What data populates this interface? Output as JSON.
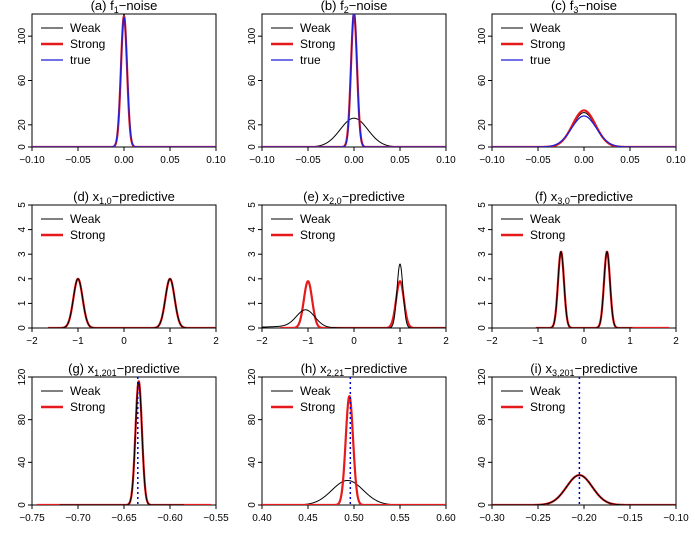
{
  "figure": {
    "description_text": ""
  },
  "colors": {
    "weak": "#000000",
    "strong": "#e41a1c",
    "true": "#1f1fd6",
    "marker": "#0000cc"
  },
  "chart_data": [
    {
      "type": "line",
      "title_prefix": "(a) f",
      "title_sub": "1",
      "title_suffix": "−noise",
      "xlim": [
        -0.1,
        0.1
      ],
      "ylim": [
        0,
        120
      ],
      "xticks": [
        -0.1,
        -0.05,
        0,
        0.05,
        0.1
      ],
      "xtick_labels": [
        "−0.10",
        "−0.05",
        "0.00",
        "0.05",
        "0.10"
      ],
      "yticks": [
        0,
        20,
        60,
        100
      ],
      "ytick_labels": [
        "0",
        "20",
        "60",
        "100"
      ],
      "legend": [
        "Weak",
        "Strong",
        "true"
      ],
      "series": [
        {
          "name": "Weak",
          "color": "weak",
          "width": 1,
          "peaks": [
            [
              0,
              0.0032,
              120
            ]
          ],
          "span": [
            -0.1,
            0.1
          ]
        },
        {
          "name": "Strong",
          "color": "strong",
          "width": 2.2,
          "peaks": [
            [
              0,
              0.0033,
              118
            ]
          ],
          "span": [
            -0.1,
            0.1
          ]
        },
        {
          "name": "true",
          "color": "true",
          "width": 1.3,
          "peaks": [
            [
              0,
              0.0034,
              117
            ]
          ],
          "span": [
            -0.1,
            0.1
          ]
        }
      ]
    },
    {
      "type": "line",
      "title_prefix": "(b) f",
      "title_sub": "2",
      "title_suffix": "−noise",
      "xlim": [
        -0.1,
        0.1
      ],
      "ylim": [
        0,
        120
      ],
      "xticks": [
        -0.1,
        -0.05,
        0,
        0.05,
        0.1
      ],
      "xtick_labels": [
        "−0.10",
        "−0.05",
        "0.00",
        "0.05",
        "0.10"
      ],
      "yticks": [
        0,
        20,
        60,
        100
      ],
      "ytick_labels": [
        "0",
        "20",
        "60",
        "100"
      ],
      "legend": [
        "Weak",
        "Strong",
        "true"
      ],
      "series": [
        {
          "name": "Weak",
          "color": "weak",
          "width": 1,
          "peaks": [
            [
              0,
              0.015,
              26
            ]
          ],
          "span": [
            -0.1,
            0.1
          ]
        },
        {
          "name": "Strong",
          "color": "strong",
          "width": 2.2,
          "peaks": [
            [
              0,
              0.0033,
              120
            ]
          ],
          "span": [
            -0.1,
            0.1
          ]
        },
        {
          "name": "true",
          "color": "true",
          "width": 1.3,
          "peaks": [
            [
              0,
              0.0032,
              124
            ]
          ],
          "span": [
            -0.1,
            0.1
          ]
        }
      ]
    },
    {
      "type": "line",
      "title_prefix": "(c) f",
      "title_sub": "3",
      "title_suffix": "−noise",
      "xlim": [
        -0.1,
        0.1
      ],
      "ylim": [
        0,
        120
      ],
      "xticks": [
        -0.1,
        -0.05,
        0,
        0.05,
        0.1
      ],
      "xtick_labels": [
        "−0.10",
        "−0.05",
        "0.00",
        "0.05",
        "0.10"
      ],
      "yticks": [
        0,
        20,
        60,
        100
      ],
      "ytick_labels": [
        "0",
        "20",
        "60",
        "100"
      ],
      "legend": [
        "Weak",
        "Strong",
        "true"
      ],
      "series": [
        {
          "name": "Weak",
          "color": "weak",
          "width": 1,
          "peaks": [
            [
              0,
              0.0125,
              31
            ]
          ],
          "span": [
            -0.1,
            0.1
          ]
        },
        {
          "name": "Strong",
          "color": "strong",
          "width": 2.2,
          "peaks": [
            [
              0,
              0.0125,
              33
            ]
          ],
          "span": [
            -0.1,
            0.1
          ]
        },
        {
          "name": "true",
          "color": "true",
          "width": 1.3,
          "peaks": [
            [
              0,
              0.0135,
              28
            ]
          ],
          "span": [
            -0.1,
            0.1
          ]
        }
      ]
    },
    {
      "type": "line",
      "title_prefix": "(d) x",
      "title_sub": "1,0",
      "title_suffix": "−predictive",
      "xlim": [
        -2,
        2
      ],
      "ylim": [
        0,
        5
      ],
      "xticks": [
        -2,
        -1,
        0,
        1,
        2
      ],
      "xtick_labels": [
        "−2",
        "−1",
        "0",
        "1",
        "2"
      ],
      "yticks": [
        0,
        1,
        2,
        3,
        4,
        5
      ],
      "ytick_labels": [
        "0",
        "1",
        "2",
        "3",
        "4",
        "5"
      ],
      "legend": [
        "Weak",
        "Strong"
      ],
      "series": [
        {
          "name": "Strong",
          "color": "strong",
          "width": 2.2,
          "peaks": [
            [
              -1,
              0.1,
              2.0
            ],
            [
              1,
              0.1,
              2.0
            ]
          ],
          "span": [
            -1.65,
            2.05
          ]
        },
        {
          "name": "Weak",
          "color": "weak",
          "width": 1,
          "peaks": [
            [
              -1,
              0.1,
              2.0
            ],
            [
              1,
              0.1,
              2.0
            ]
          ],
          "span": [
            -2.1,
            2.1
          ]
        }
      ]
    },
    {
      "type": "line",
      "title_prefix": "(e) x",
      "title_sub": "2,0",
      "title_suffix": "−predictive",
      "xlim": [
        -2,
        2
      ],
      "ylim": [
        0,
        5
      ],
      "xticks": [
        -2,
        -1,
        0,
        1,
        2
      ],
      "xtick_labels": [
        "−2",
        "−1",
        "0",
        "1",
        "2"
      ],
      "yticks": [
        0,
        1,
        2,
        3,
        4,
        5
      ],
      "ytick_labels": [
        "0",
        "1",
        "2",
        "3",
        "4",
        "5"
      ],
      "legend": [
        "Weak",
        "Strong"
      ],
      "series": [
        {
          "name": "Strong",
          "color": "strong",
          "width": 2.2,
          "peaks": [
            [
              -1,
              0.09,
              1.9
            ],
            [
              1,
              0.085,
              1.9
            ]
          ],
          "span": [
            -1.6,
            2.1
          ]
        },
        {
          "name": "Weak",
          "color": "weak",
          "width": 1,
          "peaks": [
            [
              -1.05,
              0.2,
              0.7
            ],
            [
              -1.5,
              0.5,
              0.06
            ],
            [
              1,
              0.065,
              2.6
            ]
          ],
          "span": [
            -2.1,
            2.1
          ]
        }
      ]
    },
    {
      "type": "line",
      "title_prefix": "(f) x",
      "title_sub": "3,0",
      "title_suffix": "−predictive",
      "xlim": [
        -2,
        2
      ],
      "ylim": [
        0,
        5
      ],
      "xticks": [
        -2,
        -1,
        0,
        1,
        2
      ],
      "xtick_labels": [
        "−2",
        "−1",
        "0",
        "1",
        "2"
      ],
      "yticks": [
        0,
        1,
        2,
        3,
        4,
        5
      ],
      "ytick_labels": [
        "0",
        "1",
        "2",
        "3",
        "4",
        "5"
      ],
      "legend": [
        "Weak",
        "Strong"
      ],
      "series": [
        {
          "name": "Strong",
          "color": "strong",
          "width": 2.2,
          "peaks": [
            [
              -0.5,
              0.065,
              3.1
            ],
            [
              0.5,
              0.065,
              3.1
            ]
          ],
          "span": [
            -1.05,
            1.85
          ]
        },
        {
          "name": "Weak",
          "color": "weak",
          "width": 1,
          "peaks": [
            [
              -0.5,
              0.065,
              3.1
            ],
            [
              0.5,
              0.065,
              3.1
            ]
          ],
          "span": [
            -1.05,
            1.05
          ]
        }
      ]
    },
    {
      "type": "line",
      "title_prefix": "(g) x",
      "title_sub": "1,201",
      "title_suffix": "−predictive",
      "xlim": [
        -0.75,
        -0.55
      ],
      "ylim": [
        0,
        120
      ],
      "xticks": [
        -0.75,
        -0.7,
        -0.65,
        -0.6,
        -0.55
      ],
      "xtick_labels": [
        "−0.75",
        "−0.70",
        "−0.65",
        "−0.60",
        "−0.55"
      ],
      "yticks": [
        0,
        40,
        80,
        120
      ],
      "ytick_labels": [
        "0",
        "40",
        "80",
        "120"
      ],
      "legend": [
        "Weak",
        "Strong"
      ],
      "vline": -0.635,
      "series": [
        {
          "name": "Strong",
          "color": "strong",
          "width": 2.2,
          "peaks": [
            [
              -0.634,
              0.0035,
              116
            ]
          ],
          "span": [
            -0.745,
            -0.555
          ]
        },
        {
          "name": "Weak",
          "color": "weak",
          "width": 1,
          "peaks": [
            [
              -0.634,
              0.0035,
              115
            ]
          ],
          "span": [
            -0.72,
            -0.585
          ]
        }
      ]
    },
    {
      "type": "line",
      "title_prefix": "(h) x",
      "title_sub": "2,21",
      "title_suffix": "−predictive",
      "xlim": [
        0.4,
        0.6
      ],
      "ylim": [
        0,
        120
      ],
      "xticks": [
        0.4,
        0.45,
        0.5,
        0.55,
        0.6
      ],
      "xtick_labels": [
        "0.40",
        "0.45",
        "0.50",
        "0.55",
        "0.60"
      ],
      "yticks": [
        0,
        40,
        80,
        120
      ],
      "ytick_labels": [
        "0",
        "40",
        "80",
        "120"
      ],
      "legend": [
        "Weak",
        "Strong"
      ],
      "vline": 0.496,
      "series": [
        {
          "name": "Weak",
          "color": "weak",
          "width": 1,
          "peaks": [
            [
              0.493,
              0.017,
              23
            ]
          ],
          "span": [
            0.4,
            0.6
          ]
        },
        {
          "name": "Strong",
          "color": "strong",
          "width": 2.2,
          "peaks": [
            [
              0.495,
              0.004,
              102
            ]
          ],
          "span": [
            0.4,
            0.6
          ]
        }
      ]
    },
    {
      "type": "line",
      "title_prefix": "(i) x",
      "title_sub": "3,201",
      "title_suffix": "−predictive",
      "xlim": [
        -0.3,
        -0.1
      ],
      "ylim": [
        0,
        120
      ],
      "xticks": [
        -0.3,
        -0.25,
        -0.2,
        -0.15,
        -0.1
      ],
      "xtick_labels": [
        "−0.30",
        "−0.25",
        "−0.20",
        "−0.15",
        "−0.10"
      ],
      "yticks": [
        0,
        40,
        80,
        120
      ],
      "ytick_labels": [
        "0",
        "40",
        "80",
        "120"
      ],
      "legend": [
        "Weak",
        "Strong"
      ],
      "vline": -0.205,
      "series": [
        {
          "name": "Strong",
          "color": "strong",
          "width": 2.2,
          "peaks": [
            [
              -0.205,
              0.014,
              28
            ]
          ],
          "span": [
            -0.3,
            -0.1
          ]
        },
        {
          "name": "Weak",
          "color": "weak",
          "width": 1,
          "peaks": [
            [
              -0.205,
              0.014,
              28
            ]
          ],
          "span": [
            -0.3,
            -0.1
          ]
        }
      ]
    }
  ]
}
